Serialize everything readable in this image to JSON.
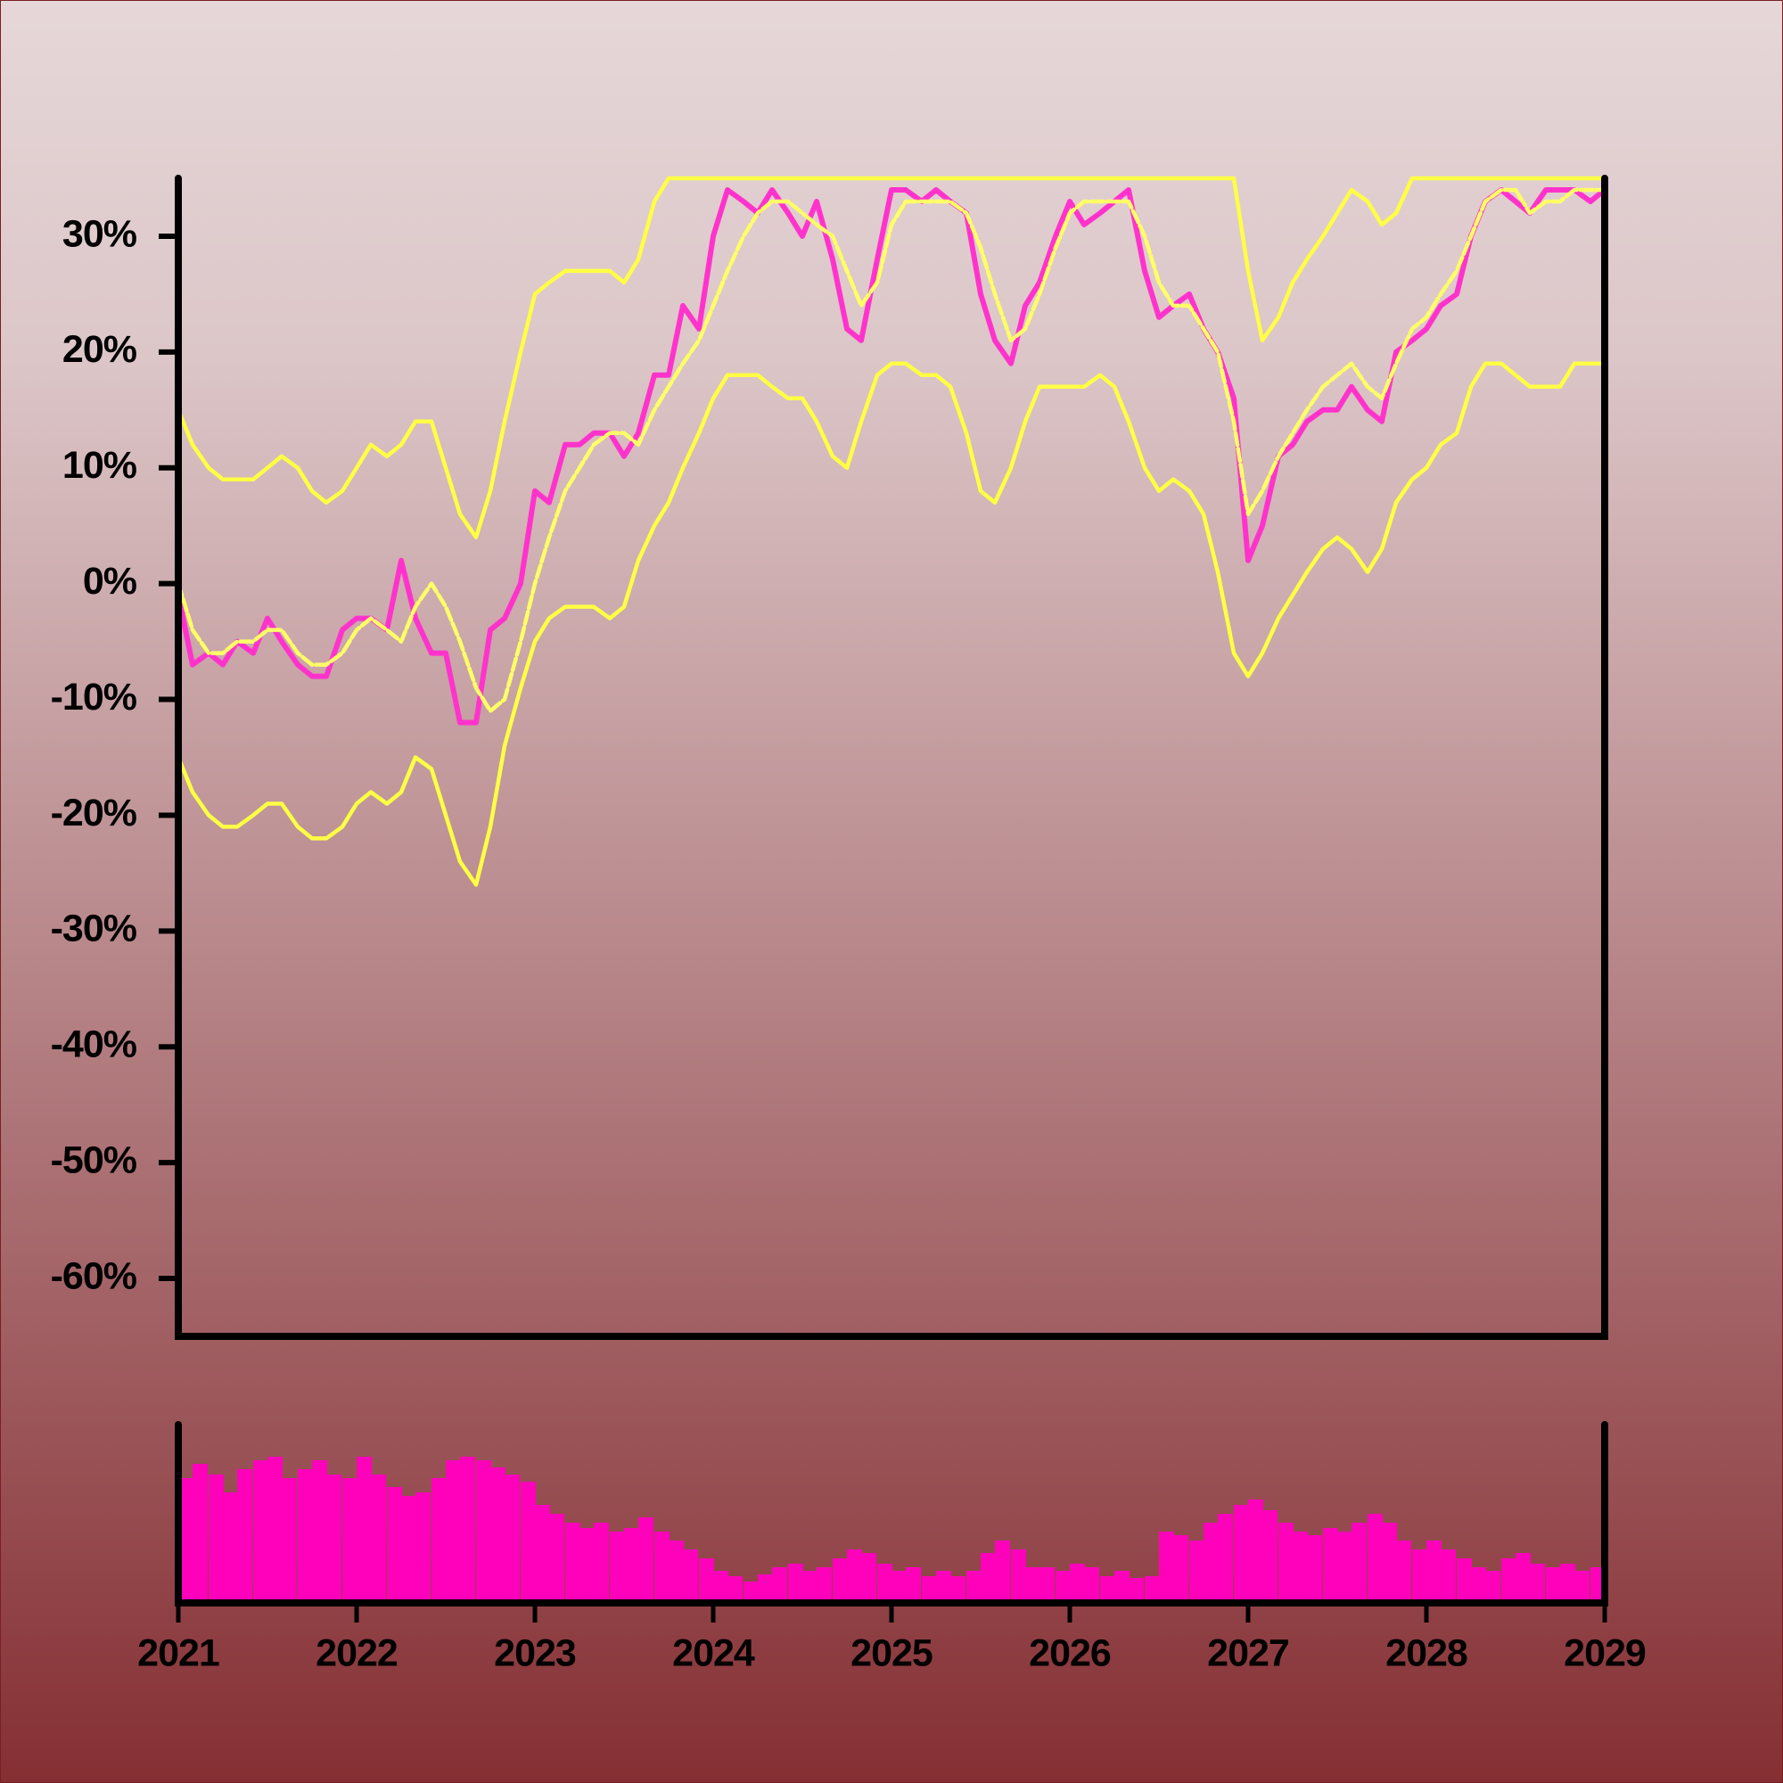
{
  "chart_data": [
    {
      "type": "line",
      "x": [
        2021,
        2021.08,
        2021.17,
        2021.25,
        2021.33,
        2021.42,
        2021.5,
        2021.58,
        2021.67,
        2021.75,
        2021.83,
        2021.92,
        2022,
        2022.08,
        2022.17,
        2022.25,
        2022.33,
        2022.42,
        2022.5,
        2022.58,
        2022.67,
        2022.75,
        2022.83,
        2022.92,
        2023,
        2023.08,
        2023.17,
        2023.25,
        2023.33,
        2023.42,
        2023.5,
        2023.58,
        2023.67,
        2023.75,
        2023.83,
        2023.92,
        2024,
        2024.08,
        2024.17,
        2024.25,
        2024.33,
        2024.42,
        2024.5,
        2024.58,
        2024.67,
        2024.75,
        2024.83,
        2024.92,
        2025,
        2025.08,
        2025.17,
        2025.25,
        2025.33,
        2025.42,
        2025.5,
        2025.58,
        2025.67,
        2025.75,
        2025.83,
        2025.92,
        2026,
        2026.08,
        2026.17,
        2026.25,
        2026.33,
        2026.42,
        2026.5,
        2026.58,
        2026.67,
        2026.75,
        2026.83,
        2026.92,
        2027,
        2027.08,
        2027.17,
        2027.25,
        2027.33,
        2027.42,
        2027.5,
        2027.58,
        2027.67,
        2027.75,
        2027.83,
        2027.92,
        2028,
        2028.08,
        2028.17,
        2028.25,
        2028.33,
        2028.42,
        2028.5,
        2028.58,
        2028.67,
        2028.75,
        2028.83,
        2028.92,
        2029
      ],
      "series": [
        {
          "color": "#ffff44",
          "values": [
            15,
            12,
            10,
            9,
            9,
            9,
            10,
            11,
            10,
            8,
            7,
            8,
            10,
            12,
            11,
            12,
            14,
            14,
            10,
            6,
            4,
            8,
            14,
            20,
            25,
            26,
            27,
            27,
            27,
            27,
            26,
            28,
            33,
            35,
            35,
            35,
            35,
            35,
            35,
            35,
            35,
            35,
            35,
            35,
            35,
            35,
            35,
            35,
            35,
            35,
            35,
            35,
            35,
            35,
            35,
            35,
            35,
            35,
            35,
            35,
            35,
            35,
            35,
            35,
            35,
            35,
            35,
            35,
            35,
            35,
            35,
            35,
            27,
            21,
            23,
            26,
            28,
            30,
            32,
            34,
            33,
            31,
            32,
            35,
            35,
            35,
            35,
            35,
            35,
            35,
            35,
            35,
            35,
            35,
            35,
            35,
            35
          ]
        },
        {
          "color": "#ffff44",
          "values": [
            -15,
            -18,
            -20,
            -21,
            -21,
            -20,
            -19,
            -19,
            -21,
            -22,
            -22,
            -21,
            -19,
            -18,
            -19,
            -18,
            -15,
            -16,
            -20,
            -24,
            -26,
            -21,
            -14,
            -9,
            -5,
            -3,
            -2,
            -2,
            -2,
            -3,
            -2,
            2,
            5,
            7,
            10,
            13,
            16,
            18,
            18,
            18,
            17,
            16,
            16,
            14,
            11,
            10,
            14,
            18,
            19,
            19,
            18,
            18,
            17,
            13,
            8,
            7,
            10,
            14,
            17,
            17,
            17,
            17,
            18,
            17,
            14,
            10,
            8,
            9,
            8,
            6,
            1,
            -6,
            -8,
            -6,
            -3,
            -1,
            1,
            3,
            4,
            3,
            1,
            3,
            7,
            9,
            10,
            12,
            13,
            17,
            19,
            19,
            18,
            17,
            17,
            17,
            19,
            19,
            19
          ]
        },
        {
          "color": "#ff33cc",
          "values": [
            -1,
            -7,
            -6,
            -7,
            -5,
            -6,
            -3,
            -5,
            -7,
            -8,
            -8,
            -4,
            -3,
            -3,
            -4,
            2,
            -3,
            -6,
            -6,
            -12,
            -12,
            -4,
            -3,
            0,
            8,
            7,
            12,
            12,
            13,
            13,
            11,
            13,
            18,
            18,
            24,
            22,
            30,
            34,
            33,
            32,
            34,
            32,
            30,
            33,
            28,
            22,
            21,
            28,
            34,
            34,
            33,
            34,
            33,
            32,
            25,
            21,
            19,
            24,
            26,
            30,
            33,
            31,
            32,
            33,
            34,
            27,
            23,
            24,
            25,
            22,
            20,
            16,
            2,
            5,
            11,
            12,
            14,
            15,
            15,
            17,
            15,
            14,
            20,
            21,
            22,
            24,
            25,
            30,
            33,
            34,
            33,
            32,
            34,
            34,
            34,
            33,
            34
          ]
        },
        {
          "color": "#ffff66",
          "dashed": true,
          "values": [
            0,
            -4,
            -6,
            -6,
            -5,
            -5,
            -4,
            -4,
            -6,
            -7,
            -7,
            -6,
            -4,
            -3,
            -4,
            -5,
            -2,
            0,
            -2,
            -5,
            -9,
            -11,
            -10,
            -5,
            0,
            4,
            8,
            10,
            12,
            13,
            13,
            12,
            15,
            17,
            19,
            21,
            24,
            27,
            30,
            32,
            33,
            33,
            32,
            31,
            30,
            27,
            24,
            26,
            31,
            33,
            33,
            33,
            33,
            32,
            29,
            25,
            21,
            22,
            25,
            29,
            32,
            33,
            33,
            33,
            33,
            30,
            26,
            24,
            24,
            22,
            20,
            14,
            6,
            8,
            11,
            13,
            15,
            17,
            18,
            19,
            17,
            16,
            19,
            22,
            23,
            25,
            27,
            30,
            33,
            34,
            34,
            32,
            33,
            33,
            34,
            34,
            34
          ]
        }
      ],
      "xlim": [
        2021,
        2029
      ],
      "ylim": [
        -65,
        35
      ],
      "yticks": [
        {
          "value": -60,
          "label": "-60%"
        },
        {
          "value": -50,
          "label": "-50%"
        },
        {
          "value": -40,
          "label": "-40%"
        },
        {
          "value": -30,
          "label": "-30%"
        },
        {
          "value": -20,
          "label": "-20%"
        },
        {
          "value": -10,
          "label": "-10%"
        },
        {
          "value": 0,
          "label": "0%"
        },
        {
          "value": 10,
          "label": "10%"
        },
        {
          "value": 20,
          "label": "20%"
        },
        {
          "value": 30,
          "label": "30%"
        }
      ]
    },
    {
      "type": "bar",
      "color": "#ff00bb",
      "x": [
        2021,
        2021.08,
        2021.17,
        2021.25,
        2021.33,
        2021.42,
        2021.5,
        2021.58,
        2021.67,
        2021.75,
        2021.83,
        2021.92,
        2022,
        2022.08,
        2022.17,
        2022.25,
        2022.33,
        2022.42,
        2022.5,
        2022.58,
        2022.67,
        2022.75,
        2022.83,
        2022.92,
        2023,
        2023.08,
        2023.17,
        2023.25,
        2023.33,
        2023.42,
        2023.5,
        2023.58,
        2023.67,
        2023.75,
        2023.83,
        2023.92,
        2024,
        2024.08,
        2024.17,
        2024.25,
        2024.33,
        2024.42,
        2024.5,
        2024.58,
        2024.67,
        2024.75,
        2024.83,
        2024.92,
        2025,
        2025.08,
        2025.17,
        2025.25,
        2025.33,
        2025.42,
        2025.5,
        2025.58,
        2025.67,
        2025.75,
        2025.83,
        2025.92,
        2026,
        2026.08,
        2026.17,
        2026.25,
        2026.33,
        2026.42,
        2026.5,
        2026.58,
        2026.67,
        2026.75,
        2026.83,
        2026.92,
        2027,
        2027.08,
        2027.17,
        2027.25,
        2027.33,
        2027.42,
        2027.5,
        2027.58,
        2027.67,
        2027.75,
        2027.83,
        2027.92,
        2028,
        2028.08,
        2028.17,
        2028.25,
        2028.33,
        2028.42,
        2028.5,
        2028.58,
        2028.67,
        2028.75,
        2028.83,
        2028.92,
        2029
      ],
      "values": [
        70,
        78,
        72,
        62,
        75,
        80,
        82,
        70,
        75,
        80,
        72,
        70,
        82,
        72,
        65,
        60,
        62,
        70,
        80,
        82,
        80,
        76,
        72,
        68,
        55,
        50,
        45,
        42,
        45,
        40,
        42,
        48,
        40,
        35,
        30,
        25,
        18,
        15,
        12,
        16,
        20,
        22,
        18,
        20,
        25,
        30,
        28,
        22,
        18,
        20,
        15,
        18,
        15,
        18,
        28,
        35,
        30,
        20,
        20,
        18,
        22,
        20,
        15,
        18,
        14,
        15,
        40,
        38,
        35,
        45,
        50,
        55,
        58,
        52,
        45,
        40,
        38,
        42,
        40,
        45,
        50,
        45,
        35,
        30,
        35,
        30,
        25,
        20,
        18,
        25,
        28,
        22,
        20,
        22,
        18,
        20,
        20
      ],
      "xlim": [
        2021,
        2029
      ],
      "ylim": [
        0,
        100
      ],
      "xticks": [
        2021,
        2022,
        2023,
        2024,
        2025,
        2026,
        2027,
        2028,
        2029
      ]
    }
  ]
}
